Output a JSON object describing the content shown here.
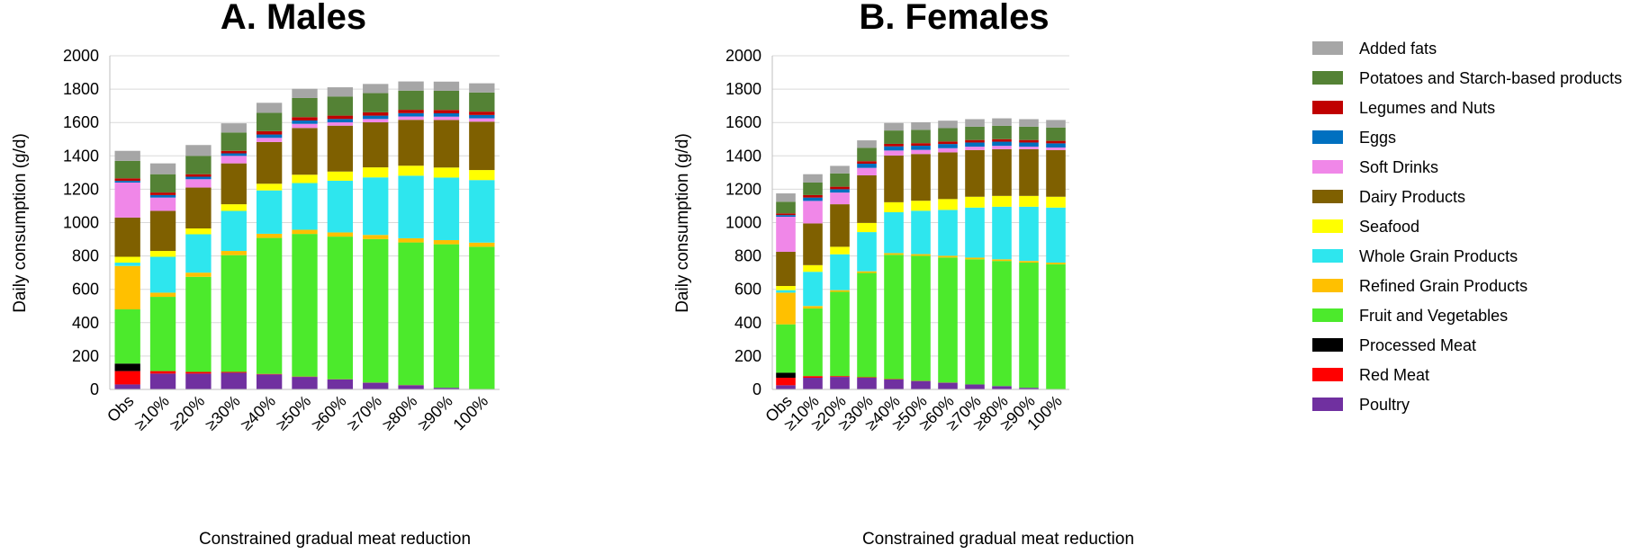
{
  "colors": {
    "Poultry": "#7030A0",
    "Red Meat": "#FF0000",
    "Processed Meat": "#000000",
    "Fruit and Vegetables": "#4CEA2C",
    "Refined Grain Products": "#FFC000",
    "Whole Grain Products": "#2EE6EE",
    "Seafood": "#FFFF00",
    "Dairy Products": "#7F6000",
    "Soft Drinks": "#F087E8",
    "Eggs": "#0070C0",
    "Legumes and Nuts": "#C00000",
    "Potatoes and Starch-based products": "#548235",
    "Added fats": "#A6A6A6"
  },
  "legend": [
    "Added fats",
    "Potatoes and Starch-based products",
    "Legumes and Nuts",
    "Eggs",
    "Soft Drinks",
    "Dairy Products",
    "Seafood",
    "Whole Grain Products",
    "Refined Grain Products",
    "Fruit and Vegetables",
    "Processed Meat",
    "Red Meat",
    "Poultry"
  ],
  "chart_data": [
    {
      "type": "bar",
      "stacked": true,
      "title": "A. Males",
      "xlabel": "Constrained gradual meat reduction",
      "ylabel": "Daily consumption (g/d)",
      "ylim": [
        0,
        2000
      ],
      "yticks": [
        0,
        200,
        400,
        600,
        800,
        1000,
        1200,
        1400,
        1600,
        1800,
        2000
      ],
      "grid": true,
      "categories": [
        "Obs",
        "≥10%",
        "≥20%",
        "≥30%",
        "≥40%",
        "≥50%",
        "≥60%",
        "≥70%",
        "≥80%",
        "≥90%",
        "100%"
      ],
      "series": [
        {
          "name": "Poultry",
          "values": [
            30,
            95,
            95,
            100,
            90,
            75,
            60,
            40,
            25,
            10,
            0
          ]
        },
        {
          "name": "Red Meat",
          "values": [
            80,
            15,
            10,
            5,
            3,
            2,
            1,
            1,
            1,
            0,
            0
          ]
        },
        {
          "name": "Processed Meat",
          "values": [
            45,
            0,
            0,
            0,
            0,
            0,
            0,
            0,
            0,
            0,
            0
          ]
        },
        {
          "name": "Fruit and Vegetables",
          "values": [
            325,
            445,
            570,
            700,
            815,
            855,
            855,
            860,
            855,
            860,
            855
          ]
        },
        {
          "name": "Refined Grain Products",
          "values": [
            260,
            25,
            25,
            25,
            25,
            25,
            25,
            25,
            25,
            25,
            25
          ]
        },
        {
          "name": "Whole Grain Products",
          "values": [
            20,
            215,
            230,
            240,
            260,
            280,
            310,
            345,
            375,
            375,
            375
          ]
        },
        {
          "name": "Seafood",
          "values": [
            35,
            35,
            35,
            40,
            40,
            50,
            55,
            60,
            60,
            60,
            60
          ]
        },
        {
          "name": "Dairy Products",
          "values": [
            235,
            240,
            245,
            245,
            250,
            280,
            275,
            270,
            275,
            285,
            290
          ]
        },
        {
          "name": "Soft Drinks",
          "values": [
            210,
            80,
            50,
            45,
            25,
            25,
            20,
            20,
            20,
            20,
            20
          ]
        },
        {
          "name": "Eggs",
          "values": [
            10,
            15,
            15,
            15,
            20,
            20,
            20,
            20,
            20,
            20,
            20
          ]
        },
        {
          "name": "Legumes and Nuts",
          "values": [
            15,
            15,
            15,
            15,
            20,
            20,
            20,
            20,
            20,
            20,
            20
          ]
        },
        {
          "name": "Potatoes and Starch-based products",
          "values": [
            105,
            110,
            110,
            110,
            110,
            115,
            115,
            115,
            115,
            115,
            115
          ]
        },
        {
          "name": "Added fats",
          "values": [
            60,
            65,
            65,
            55,
            60,
            55,
            55,
            55,
            55,
            55,
            55
          ]
        }
      ]
    },
    {
      "type": "bar",
      "stacked": true,
      "title": "B. Females",
      "xlabel": "Constrained gradual meat reduction",
      "ylabel": "Daily consumption (g/d)",
      "ylim": [
        0,
        2000
      ],
      "yticks": [
        0,
        200,
        400,
        600,
        800,
        1000,
        1200,
        1400,
        1600,
        1800,
        2000
      ],
      "grid": true,
      "categories": [
        "Obs",
        "≥10%",
        "≥20%",
        "≥30%",
        "≥40%",
        "≥50%",
        "≥60%",
        "≥70%",
        "≥80%",
        "≥90%",
        "100%"
      ],
      "series": [
        {
          "name": "Poultry",
          "values": [
            25,
            70,
            75,
            70,
            60,
            50,
            40,
            30,
            20,
            10,
            0
          ]
        },
        {
          "name": "Red Meat",
          "values": [
            45,
            10,
            5,
            3,
            2,
            1,
            1,
            0,
            0,
            0,
            0
          ]
        },
        {
          "name": "Processed Meat",
          "values": [
            30,
            0,
            0,
            0,
            0,
            0,
            0,
            0,
            0,
            0,
            0
          ]
        },
        {
          "name": "Fruit and Vegetables",
          "values": [
            290,
            405,
            505,
            625,
            745,
            750,
            750,
            750,
            750,
            750,
            750
          ]
        },
        {
          "name": "Refined Grain Products",
          "values": [
            190,
            15,
            10,
            10,
            10,
            10,
            10,
            10,
            10,
            10,
            10
          ]
        },
        {
          "name": "Whole Grain Products",
          "values": [
            15,
            205,
            215,
            235,
            245,
            260,
            275,
            300,
            315,
            325,
            330
          ]
        },
        {
          "name": "Seafood",
          "values": [
            25,
            40,
            45,
            55,
            60,
            60,
            65,
            65,
            65,
            65,
            65
          ]
        },
        {
          "name": "Dairy Products",
          "values": [
            205,
            250,
            255,
            285,
            280,
            280,
            280,
            280,
            280,
            280,
            280
          ]
        },
        {
          "name": "Soft Drinks",
          "values": [
            210,
            135,
            70,
            45,
            30,
            25,
            25,
            20,
            20,
            15,
            15
          ]
        },
        {
          "name": "Eggs",
          "values": [
            10,
            20,
            20,
            25,
            25,
            25,
            25,
            25,
            25,
            25,
            25
          ]
        },
        {
          "name": "Legumes and Nuts",
          "values": [
            10,
            15,
            15,
            15,
            15,
            15,
            15,
            15,
            15,
            15,
            15
          ]
        },
        {
          "name": "Potatoes and Starch-based products",
          "values": [
            70,
            75,
            80,
            80,
            80,
            80,
            80,
            80,
            80,
            80,
            80
          ]
        },
        {
          "name": "Added fats",
          "values": [
            50,
            50,
            45,
            45,
            45,
            45,
            45,
            45,
            45,
            45,
            45
          ]
        }
      ]
    }
  ]
}
